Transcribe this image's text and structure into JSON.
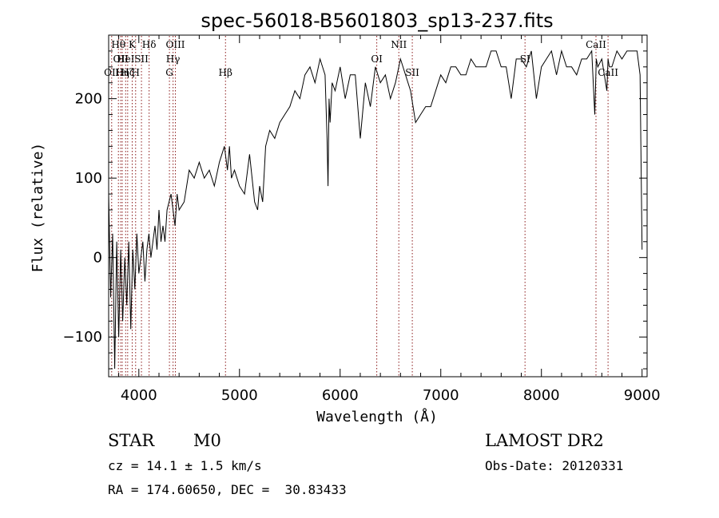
{
  "chart_data": {
    "type": "line",
    "title": "spec-56018-B5601803_sp13-237.fits",
    "xlabel": "Wavelength (Å)",
    "ylabel": "Flux (relative)",
    "xlim": [
      3700,
      9050
    ],
    "ylim": [
      -150,
      280
    ],
    "xticks": [
      4000,
      5000,
      6000,
      7000,
      8000,
      9000
    ],
    "yticks": [
      -100,
      0,
      100,
      200
    ],
    "ytick_labels": [
      "−100",
      "0",
      "100",
      "200"
    ],
    "grid": false,
    "line_color": "#000000",
    "marker_color": "#8b1a1a",
    "spectrum": {
      "x": [
        3700,
        3720,
        3740,
        3760,
        3780,
        3800,
        3820,
        3840,
        3860,
        3880,
        3900,
        3920,
        3940,
        3960,
        3980,
        4000,
        4020,
        4040,
        4060,
        4080,
        4100,
        4120,
        4140,
        4160,
        4180,
        4200,
        4220,
        4240,
        4260,
        4280,
        4300,
        4320,
        4340,
        4360,
        4380,
        4400,
        4450,
        4500,
        4550,
        4600,
        4650,
        4700,
        4750,
        4800,
        4850,
        4880,
        4900,
        4920,
        4950,
        5000,
        5050,
        5100,
        5150,
        5180,
        5200,
        5230,
        5260,
        5300,
        5350,
        5400,
        5450,
        5500,
        5550,
        5600,
        5650,
        5700,
        5750,
        5800,
        5850,
        5870,
        5880,
        5890,
        5900,
        5920,
        5950,
        6000,
        6050,
        6100,
        6150,
        6200,
        6250,
        6300,
        6350,
        6400,
        6450,
        6500,
        6550,
        6600,
        6650,
        6700,
        6750,
        6800,
        6850,
        6900,
        6950,
        7000,
        7050,
        7100,
        7150,
        7200,
        7250,
        7300,
        7350,
        7400,
        7450,
        7500,
        7550,
        7600,
        7650,
        7700,
        7750,
        7800,
        7850,
        7900,
        7950,
        8000,
        8050,
        8100,
        8150,
        8200,
        8250,
        8300,
        8350,
        8400,
        8450,
        8500,
        8530,
        8545,
        8560,
        8600,
        8650,
        8662,
        8675,
        8700,
        8750,
        8800,
        8850,
        8900,
        8950,
        8980,
        9000
      ],
      "y": [
        80,
        -50,
        30,
        -140,
        20,
        -100,
        10,
        -80,
        0,
        -60,
        20,
        -90,
        10,
        -40,
        30,
        -20,
        0,
        20,
        -30,
        10,
        30,
        0,
        20,
        40,
        10,
        60,
        20,
        40,
        20,
        60,
        70,
        80,
        60,
        40,
        80,
        60,
        70,
        110,
        100,
        120,
        100,
        110,
        90,
        120,
        140,
        110,
        140,
        100,
        110,
        90,
        80,
        130,
        70,
        60,
        90,
        70,
        140,
        160,
        150,
        170,
        180,
        190,
        210,
        200,
        230,
        240,
        220,
        250,
        230,
        150,
        90,
        200,
        170,
        220,
        210,
        240,
        200,
        230,
        230,
        150,
        220,
        190,
        240,
        220,
        230,
        200,
        220,
        250,
        230,
        210,
        170,
        180,
        190,
        190,
        210,
        230,
        220,
        240,
        240,
        230,
        230,
        250,
        240,
        240,
        240,
        260,
        260,
        240,
        240,
        200,
        250,
        250,
        240,
        260,
        200,
        240,
        250,
        260,
        230,
        260,
        240,
        240,
        230,
        250,
        250,
        260,
        180,
        250,
        240,
        250,
        210,
        250,
        240,
        240,
        260,
        250,
        260,
        260,
        260,
        230,
        10
      ]
    },
    "lines": [
      {
        "wl": 3730,
        "label": "OII",
        "row": 2
      },
      {
        "wl": 3797,
        "label": "Hθ",
        "row": 0
      },
      {
        "wl": 3820,
        "label": "OII",
        "row": 1
      },
      {
        "wl": 3835,
        "label": "Hη",
        "row": 2
      },
      {
        "wl": 3869,
        "label": "HeI",
        "row": 1
      },
      {
        "wl": 3889,
        "label": "Hζ",
        "row": 2
      },
      {
        "wl": 3934,
        "label": "K",
        "row": 0
      },
      {
        "wl": 3968,
        "label": "H",
        "row": 2
      },
      {
        "wl": 4026,
        "label": "SII",
        "row": 1
      },
      {
        "wl": 4102,
        "label": "Hδ",
        "row": 0
      },
      {
        "wl": 4304,
        "label": "G",
        "row": 2
      },
      {
        "wl": 4340,
        "label": "Hγ",
        "row": 1
      },
      {
        "wl": 4363,
        "label": "OIII",
        "row": 0
      },
      {
        "wl": 4861,
        "label": "Hβ",
        "row": 2
      },
      {
        "wl": 6364,
        "label": "OI",
        "row": 1
      },
      {
        "wl": 6583,
        "label": "NII",
        "row": 0
      },
      {
        "wl": 6717,
        "label": "SII",
        "row": 2
      },
      {
        "wl": 7837,
        "label": "SI",
        "row": 1
      },
      {
        "wl": 8542,
        "label": "CaII",
        "row": 0
      },
      {
        "wl": 8662,
        "label": "CaII",
        "row": 2
      }
    ]
  },
  "footer": {
    "object_class": "STAR",
    "subclass": "M0",
    "survey": "LAMOST DR2",
    "redshift": "cz = 14.1 ± 1.5 km/s",
    "obs_date": "Obs-Date: 20120331",
    "coords": "RA = 174.60650, DEC =  30.83433"
  }
}
